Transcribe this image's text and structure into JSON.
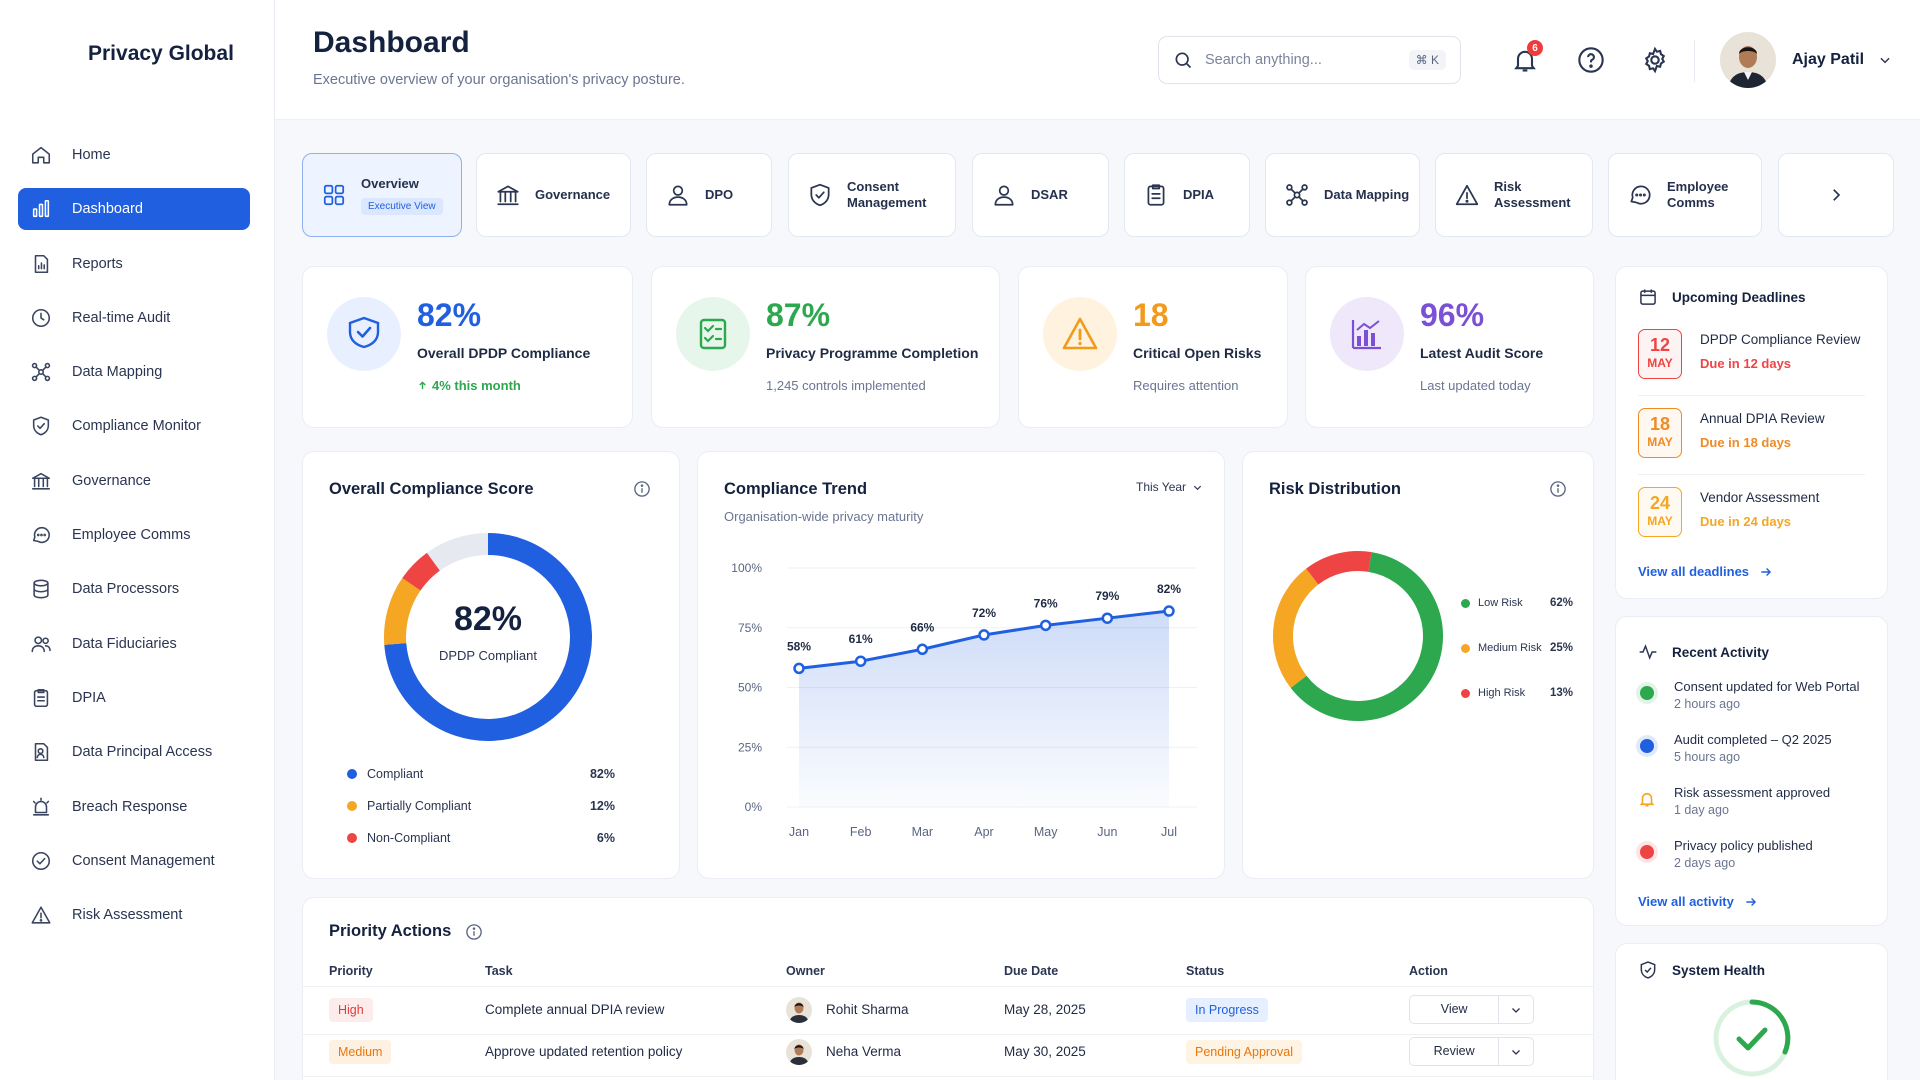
{
  "brand": "Privacy Global",
  "sidebar": {
    "items": [
      {
        "label": "Home",
        "icon": "home-icon",
        "active": false
      },
      {
        "label": "Dashboard",
        "icon": "bar-chart-icon",
        "active": true
      },
      {
        "label": "Reports",
        "icon": "report-icon",
        "active": false
      },
      {
        "label": "Real-time Audit",
        "icon": "clock-icon",
        "active": false
      },
      {
        "label": "Data Mapping",
        "icon": "network-icon",
        "active": false
      },
      {
        "label": "Compliance Monitor",
        "icon": "shield-check-icon",
        "active": false
      },
      {
        "label": "Governance",
        "icon": "bank-icon",
        "active": false
      },
      {
        "label": "Employee Comms",
        "icon": "chat-icon",
        "active": false
      },
      {
        "label": "Data Processors",
        "icon": "database-icon",
        "active": false
      },
      {
        "label": "Data Fiduciaries",
        "icon": "users-icon",
        "active": false
      },
      {
        "label": "DPIA",
        "icon": "clipboard-icon",
        "active": false
      },
      {
        "label": "Data Principal Access",
        "icon": "user-search-icon",
        "active": false
      },
      {
        "label": "Breach Response",
        "icon": "alarm-icon",
        "active": false
      },
      {
        "label": "Consent Management",
        "icon": "check-circle-icon",
        "active": false
      },
      {
        "label": "Risk Assessment",
        "icon": "warning-icon",
        "active": false
      }
    ]
  },
  "header": {
    "title": "Dashboard",
    "subtitle": "Executive overview of your organisation's privacy posture.",
    "search_placeholder": "Search anything...",
    "search_shortcut": "⌘ K",
    "notification_count": "6",
    "user_name": "Ajay Patil"
  },
  "tabs": [
    {
      "label": "Overview",
      "sub": "Executive View",
      "icon": "grid-icon"
    },
    {
      "label": "Governance",
      "icon": "bank-icon"
    },
    {
      "label": "DPO",
      "icon": "user-icon"
    },
    {
      "label": "Consent\nManagement",
      "icon": "shield-check-icon"
    },
    {
      "label": "DSAR",
      "icon": "user-icon"
    },
    {
      "label": "DPIA",
      "icon": "clipboard-icon"
    },
    {
      "label": "Data Mapping",
      "icon": "network-icon"
    },
    {
      "label": "Risk\nAssessment",
      "icon": "warning-icon"
    },
    {
      "label": "Employee\nComms",
      "icon": "chat-icon"
    }
  ],
  "kpis": [
    {
      "value": "82%",
      "label": "Overall DPDP Compliance",
      "note": "4% this month",
      "color": "#1f5fe0"
    },
    {
      "value": "87%",
      "label": "Privacy Programme Completion",
      "note": "1,245 controls implemented",
      "color": "#2da84f"
    },
    {
      "value": "18",
      "label": "Critical Open Risks",
      "note": "Requires attention",
      "color": "#f29a1a"
    },
    {
      "value": "96%",
      "label": "Latest Audit Score",
      "note": "Last updated today",
      "color": "#7b4fd6"
    }
  ],
  "compliance_score": {
    "title": "Overall Compliance Score",
    "center_value": "82%",
    "center_label": "DPDP Compliant",
    "segments": [
      {
        "label": "Compliant",
        "value": 82,
        "display": "82%",
        "color": "#1f5fe0"
      },
      {
        "label": "Partially Compliant",
        "value": 12,
        "display": "12%",
        "color": "#f5a623"
      },
      {
        "label": "Non-Compliant",
        "value": 6,
        "display": "6%",
        "color": "#ef4444"
      }
    ]
  },
  "trend": {
    "title": "Compliance Trend",
    "subtitle": "Organisation-wide privacy maturity",
    "period": "This Year",
    "chart_data": {
      "type": "area",
      "categories": [
        "Jan",
        "Feb",
        "Mar",
        "Apr",
        "May",
        "Jun",
        "Jul"
      ],
      "values": [
        58,
        61,
        66,
        72,
        76,
        79,
        82
      ],
      "labels": [
        "58%",
        "61%",
        "66%",
        "72%",
        "76%",
        "79%",
        "82%"
      ],
      "y_ticks": [
        "0%",
        "25%",
        "50%",
        "75%",
        "100%"
      ],
      "ylim": [
        0,
        100
      ],
      "color": "#1f5fe0"
    }
  },
  "risk": {
    "title": "Risk Distribution",
    "chart_data": {
      "type": "pie",
      "categories": [
        "Low Risk",
        "Medium Risk",
        "High Risk"
      ],
      "values": [
        62,
        25,
        13
      ],
      "display": [
        "62%",
        "25%",
        "13%"
      ],
      "colors": [
        "#2da84f",
        "#f5a623",
        "#ef4444"
      ]
    }
  },
  "deadlines": {
    "title": "Upcoming Deadlines",
    "items": [
      {
        "day": "12",
        "month": "MAY",
        "name": "DPDP Compliance Review",
        "due": "Due in 12 days",
        "color": "#ef4444"
      },
      {
        "day": "18",
        "month": "MAY",
        "name": "Annual DPIA Review",
        "due": "Due in 18 days",
        "color": "#f08a24"
      },
      {
        "day": "24",
        "month": "MAY",
        "name": "Vendor Assessment",
        "due": "Due in 24 days",
        "color": "#f5a623"
      }
    ],
    "link": "View all deadlines"
  },
  "activity": {
    "title": "Recent Activity",
    "items": [
      {
        "text": "Consent updated for Web Portal",
        "time": "2 hours ago",
        "color": "#2da84f"
      },
      {
        "text": "Audit completed – Q2 2025",
        "time": "5 hours ago",
        "color": "#1f5fe0"
      },
      {
        "text": "Risk assessment approved",
        "time": "1 day ago",
        "color": "#f5a623"
      },
      {
        "text": "Privacy policy published",
        "time": "2 days ago",
        "color": "#ef4444"
      }
    ],
    "link": "View all activity"
  },
  "system_health": {
    "title": "System Health"
  },
  "priority": {
    "title": "Priority Actions",
    "columns": [
      "Priority",
      "Task",
      "Owner",
      "Due Date",
      "Status",
      "Action"
    ],
    "rows": [
      {
        "priority": "High",
        "task": "Complete annual DPIA review",
        "owner": "Rohit Sharma",
        "due": "May 28, 2025",
        "status": "In Progress",
        "action": "View",
        "pcolor": "#e53935",
        "pbg": "#fdecec",
        "scolor": "#1f5fe0",
        "sbg": "#e6efff"
      },
      {
        "priority": "Medium",
        "task": "Approve updated retention policy",
        "owner": "Neha Verma",
        "due": "May 30, 2025",
        "status": "Pending Approval",
        "action": "Review",
        "pcolor": "#e8760c",
        "pbg": "#fff1e2",
        "scolor": "#e8760c",
        "sbg": "#fff3e3"
      }
    ]
  }
}
